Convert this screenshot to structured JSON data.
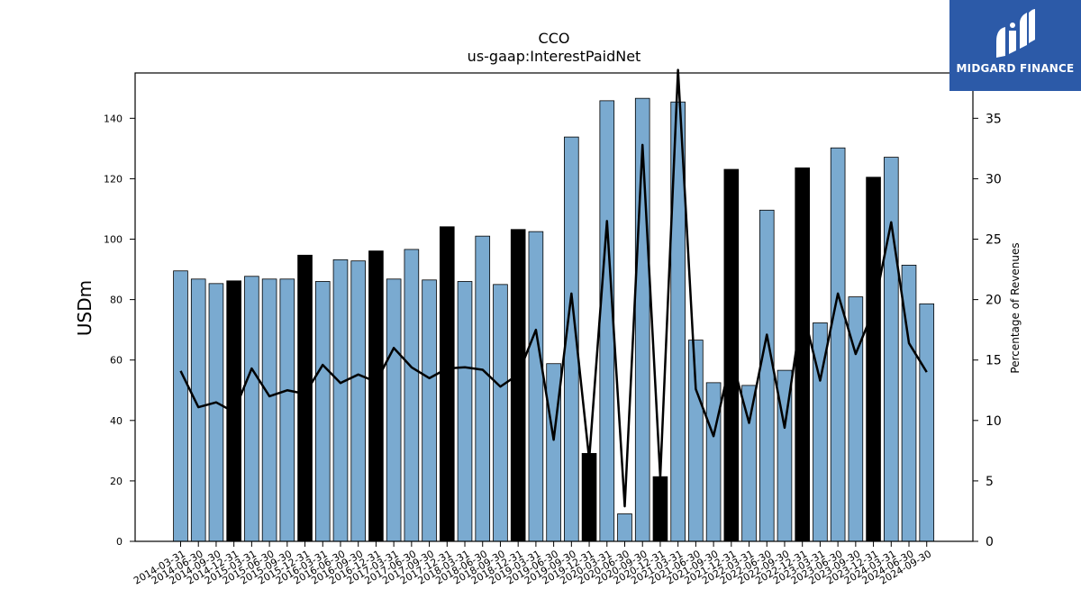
{
  "chart_data": {
    "type": "bar",
    "title": "CCO",
    "subtitle": "us-gaap:InterestPaidNet",
    "ylabel": "USDm",
    "ylabel_right": "Percentage of Revenues",
    "ylim": [
      0,
      155
    ],
    "ylim_right": [
      0,
      38.75
    ],
    "yticks": [
      0,
      20,
      40,
      60,
      80,
      100,
      120,
      140
    ],
    "yticks_right": [
      0,
      5,
      10,
      15,
      20,
      25,
      30,
      35
    ],
    "categories": [
      "2014-03-31",
      "2014-06-30",
      "2014-09-30",
      "2014-12-31",
      "2015-03-31",
      "2015-06-30",
      "2015-09-30",
      "2015-12-31",
      "2016-03-31",
      "2016-06-30",
      "2016-09-30",
      "2016-12-31",
      "2017-03-31",
      "2017-06-30",
      "2017-09-30",
      "2017-12-31",
      "2018-03-31",
      "2018-06-30",
      "2018-09-30",
      "2018-12-31",
      "2019-03-31",
      "2019-06-30",
      "2019-09-30",
      "2019-12-31",
      "2020-03-31",
      "2020-06-30",
      "2020-09-30",
      "2020-12-31",
      "2021-03-31",
      "2021-06-30",
      "2021-09-30",
      "2021-12-31",
      "2022-03-31",
      "2022-06-30",
      "2022-09-30",
      "2022-12-31",
      "2023-03-31",
      "2023-06-30",
      "2023-09-30",
      "2023-12-31",
      "2024-03-31",
      "2024-06-30",
      "2024-09-30"
    ],
    "series": [
      {
        "name": "USDm",
        "type": "bar",
        "color": "#7aaad0",
        "highlight_color": "#000000",
        "values": [
          89.5,
          86.8,
          85.3,
          86.2,
          87.7,
          86.8,
          86.8,
          94.7,
          86.0,
          93.2,
          92.8,
          96.1,
          86.8,
          96.6,
          86.5,
          104.1,
          86.0,
          101.0,
          85.0,
          103.2,
          102.5,
          58.8,
          133.8,
          29.1,
          145.8,
          9.1,
          146.6,
          21.4,
          145.4,
          66.6,
          52.5,
          123.1,
          51.6,
          109.6,
          56.6,
          123.6,
          72.3,
          130.2,
          80.9,
          120.5,
          127.1,
          91.4,
          78.6
        ],
        "highlighted": [
          false,
          false,
          false,
          true,
          false,
          false,
          false,
          true,
          false,
          false,
          false,
          true,
          false,
          false,
          false,
          true,
          false,
          false,
          false,
          true,
          false,
          false,
          false,
          true,
          false,
          false,
          false,
          true,
          false,
          false,
          false,
          true,
          false,
          false,
          false,
          true,
          false,
          false,
          false,
          true,
          false,
          false,
          false
        ]
      },
      {
        "name": "Percentage of Revenues",
        "type": "line",
        "axis": "right",
        "color": "#000000",
        "values": [
          14.1,
          11.1,
          11.5,
          10.7,
          14.3,
          12.0,
          12.5,
          12.2,
          14.6,
          13.1,
          13.8,
          13.2,
          16.0,
          14.4,
          13.5,
          14.3,
          14.4,
          14.2,
          12.8,
          13.8,
          17.5,
          8.4,
          20.5,
          6.8,
          26.5,
          2.9,
          32.8,
          5.3,
          39.0,
          12.6,
          8.7,
          15.2,
          9.8,
          17.1,
          9.4,
          19.3,
          13.3,
          20.5,
          15.5,
          19.1,
          26.4,
          16.4,
          14.0
        ]
      }
    ],
    "grid": false,
    "legend": "none"
  },
  "logo": {
    "name": "MIDGARD FINANCE",
    "background": "#2c5aa8"
  }
}
